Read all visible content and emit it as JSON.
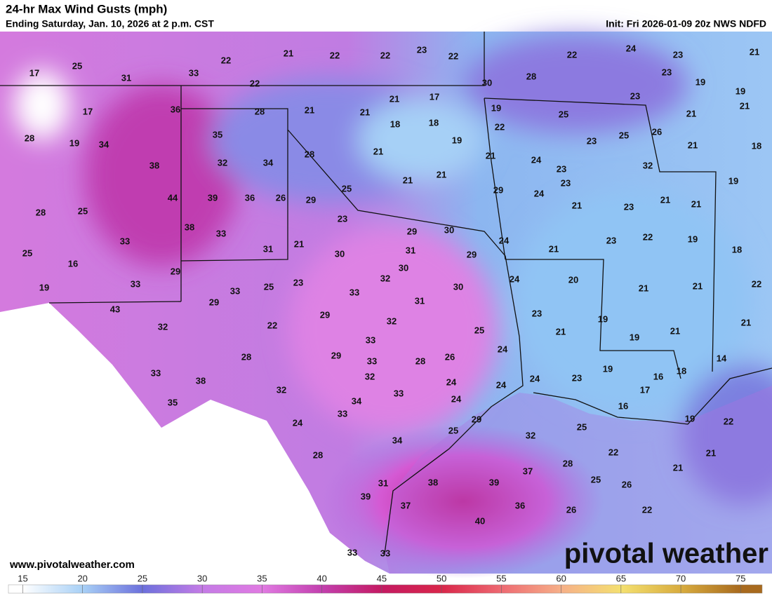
{
  "header": {
    "title": "24-hr Max Wind Gusts (mph)",
    "subtitle": "Ending Saturday, Jan. 10, 2026 at 2 p.m. CST",
    "init": "Init: Fri 2026-01-09 20z NWS NDFD"
  },
  "map": {
    "labels": [
      17,
      25,
      31,
      33,
      22,
      22,
      21,
      22,
      22,
      23,
      22,
      30,
      22,
      24,
      23,
      21,
      23,
      19,
      19,
      28,
      23,
      19,
      21,
      21,
      17,
      36,
      28,
      21,
      21,
      21,
      17,
      18,
      18,
      22,
      25,
      25,
      26,
      28,
      19,
      34,
      35,
      19,
      23,
      21,
      18,
      28,
      21,
      21,
      24,
      23,
      38,
      32,
      34,
      32,
      21,
      21,
      25,
      29,
      23,
      24,
      19,
      44,
      39,
      36,
      26,
      29,
      21,
      23,
      21,
      21,
      28,
      25,
      23,
      29,
      30,
      38,
      33,
      22,
      23,
      19,
      24,
      33,
      21,
      18,
      21,
      31,
      30,
      31,
      29,
      25,
      16,
      29,
      30,
      24,
      20,
      32,
      33,
      25,
      23,
      33,
      30,
      19,
      21,
      21,
      22,
      33,
      31,
      43,
      29,
      29,
      23,
      32,
      19,
      32,
      22,
      25,
      21,
      21,
      33,
      19,
      21,
      24,
      28,
      29,
      33,
      28,
      26,
      19,
      14,
      33,
      18,
      16,
      38,
      32,
      24,
      23,
      24,
      24,
      17,
      32,
      33,
      34,
      24,
      35,
      16,
      33,
      29,
      19,
      22,
      24,
      25,
      25,
      32,
      34,
      21,
      22,
      28,
      28,
      21,
      37,
      25,
      26,
      31,
      38,
      39,
      39,
      37,
      36,
      22,
      26,
      40,
      33,
      33
    ]
  },
  "footer": {
    "site": "www.pivotalweather.com",
    "logo": "pivotal weather"
  },
  "colorbar": {
    "xlim": [
      13.8,
      76.8
    ],
    "ticks": [
      15,
      20,
      25,
      30,
      35,
      40,
      45,
      50,
      55,
      60,
      65,
      70,
      75
    ],
    "colors": [
      "#ffffff",
      "#a8d0f6",
      "#6c70dc",
      "#c47be6",
      "#e07ae2",
      "#c23fae",
      "#c41a62",
      "#d9264a",
      "#ee6a72",
      "#f6b088",
      "#f4e070",
      "#d8ac3e",
      "#a86a1e"
    ]
  }
}
